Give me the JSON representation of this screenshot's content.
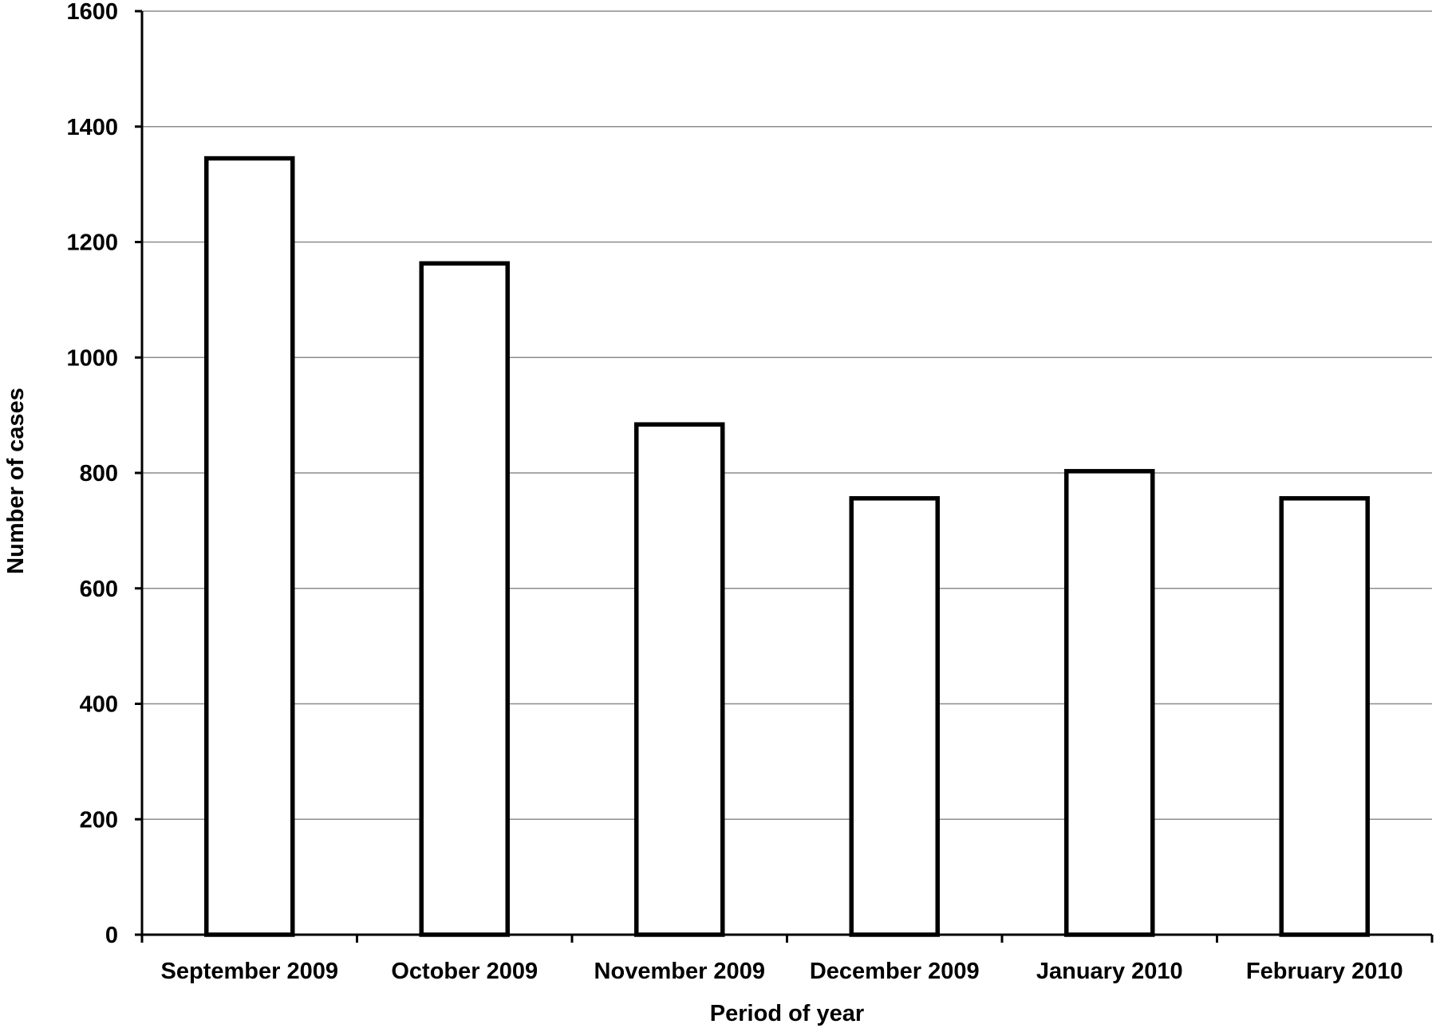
{
  "chart_data": {
    "type": "bar",
    "categories": [
      "September 2009",
      "October 2009",
      "November 2009",
      "December 2009",
      "January 2010",
      "February 2010"
    ],
    "values": [
      1345,
      1163,
      884,
      756,
      803,
      756
    ],
    "title": "",
    "xlabel": "Period of year",
    "ylabel": "Number of cases",
    "ylim": [
      0,
      1600
    ],
    "yticks": [
      0,
      200,
      400,
      600,
      800,
      1000,
      1200,
      1400,
      1600
    ],
    "grid": true,
    "legend": "none",
    "colors": {
      "bar_fill": "#ffffff",
      "bar_stroke": "#000000",
      "grid": "#8c8c8c",
      "axis": "#000000"
    }
  }
}
